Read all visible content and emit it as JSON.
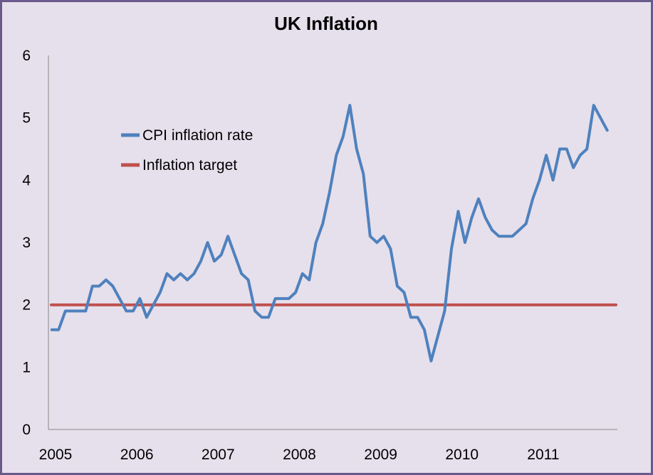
{
  "chart_data": {
    "type": "line",
    "title": "UK Inflation",
    "xlabel": "",
    "ylabel": "",
    "x_ticks": [
      "2005",
      "2006",
      "2007",
      "2008",
      "2009",
      "2010",
      "2011"
    ],
    "y_ticks": [
      "0",
      "1",
      "2",
      "3",
      "4",
      "5",
      "6"
    ],
    "ylim": [
      0,
      6
    ],
    "xlim": [
      "2005-01",
      "2011-12"
    ],
    "grid": false,
    "legend_position": "upper-left",
    "series": [
      {
        "name": "CPI inflation rate",
        "color": "#4f81bd",
        "x": [
          "2005-01",
          "2005-02",
          "2005-03",
          "2005-04",
          "2005-05",
          "2005-06",
          "2005-07",
          "2005-08",
          "2005-09",
          "2005-10",
          "2005-11",
          "2005-12",
          "2006-01",
          "2006-02",
          "2006-03",
          "2006-04",
          "2006-05",
          "2006-06",
          "2006-07",
          "2006-08",
          "2006-09",
          "2006-10",
          "2006-11",
          "2006-12",
          "2007-01",
          "2007-02",
          "2007-03",
          "2007-04",
          "2007-05",
          "2007-06",
          "2007-07",
          "2007-08",
          "2007-09",
          "2007-10",
          "2007-11",
          "2007-12",
          "2008-01",
          "2008-02",
          "2008-03",
          "2008-04",
          "2008-05",
          "2008-06",
          "2008-07",
          "2008-08",
          "2008-09",
          "2008-10",
          "2008-11",
          "2008-12",
          "2009-01",
          "2009-02",
          "2009-03",
          "2009-04",
          "2009-05",
          "2009-06",
          "2009-07",
          "2009-08",
          "2009-09",
          "2009-10",
          "2009-11",
          "2009-12",
          "2010-01",
          "2010-02",
          "2010-03",
          "2010-04",
          "2010-05",
          "2010-06",
          "2010-07",
          "2010-08",
          "2010-09",
          "2010-10",
          "2010-11",
          "2010-12",
          "2011-01",
          "2011-02",
          "2011-03",
          "2011-04",
          "2011-05",
          "2011-06",
          "2011-07",
          "2011-08",
          "2011-09",
          "2011-10",
          "2011-11"
        ],
        "values": [
          1.6,
          1.6,
          1.9,
          1.9,
          1.9,
          1.9,
          2.3,
          2.3,
          2.4,
          2.3,
          2.1,
          1.9,
          1.9,
          2.1,
          1.8,
          2.0,
          2.2,
          2.5,
          2.4,
          2.5,
          2.4,
          2.5,
          2.7,
          3.0,
          2.7,
          2.8,
          3.1,
          2.8,
          2.5,
          2.4,
          1.9,
          1.8,
          1.8,
          2.1,
          2.1,
          2.1,
          2.2,
          2.5,
          2.4,
          3.0,
          3.3,
          3.8,
          4.4,
          4.7,
          5.2,
          4.5,
          4.1,
          3.1,
          3.0,
          3.1,
          2.9,
          2.3,
          2.2,
          1.8,
          1.8,
          1.6,
          1.1,
          1.5,
          1.9,
          2.9,
          3.5,
          3.0,
          3.4,
          3.7,
          3.4,
          3.2,
          3.1,
          3.1,
          3.1,
          3.2,
          3.3,
          3.7,
          4.0,
          4.4,
          4.0,
          4.5,
          4.5,
          4.2,
          4.4,
          4.5,
          5.2,
          5.0,
          4.8
        ]
      },
      {
        "name": "Inflation target",
        "color": "#c0504d",
        "x": [
          "2005-01",
          "2011-11"
        ],
        "values": [
          2.0,
          2.0
        ]
      }
    ]
  }
}
